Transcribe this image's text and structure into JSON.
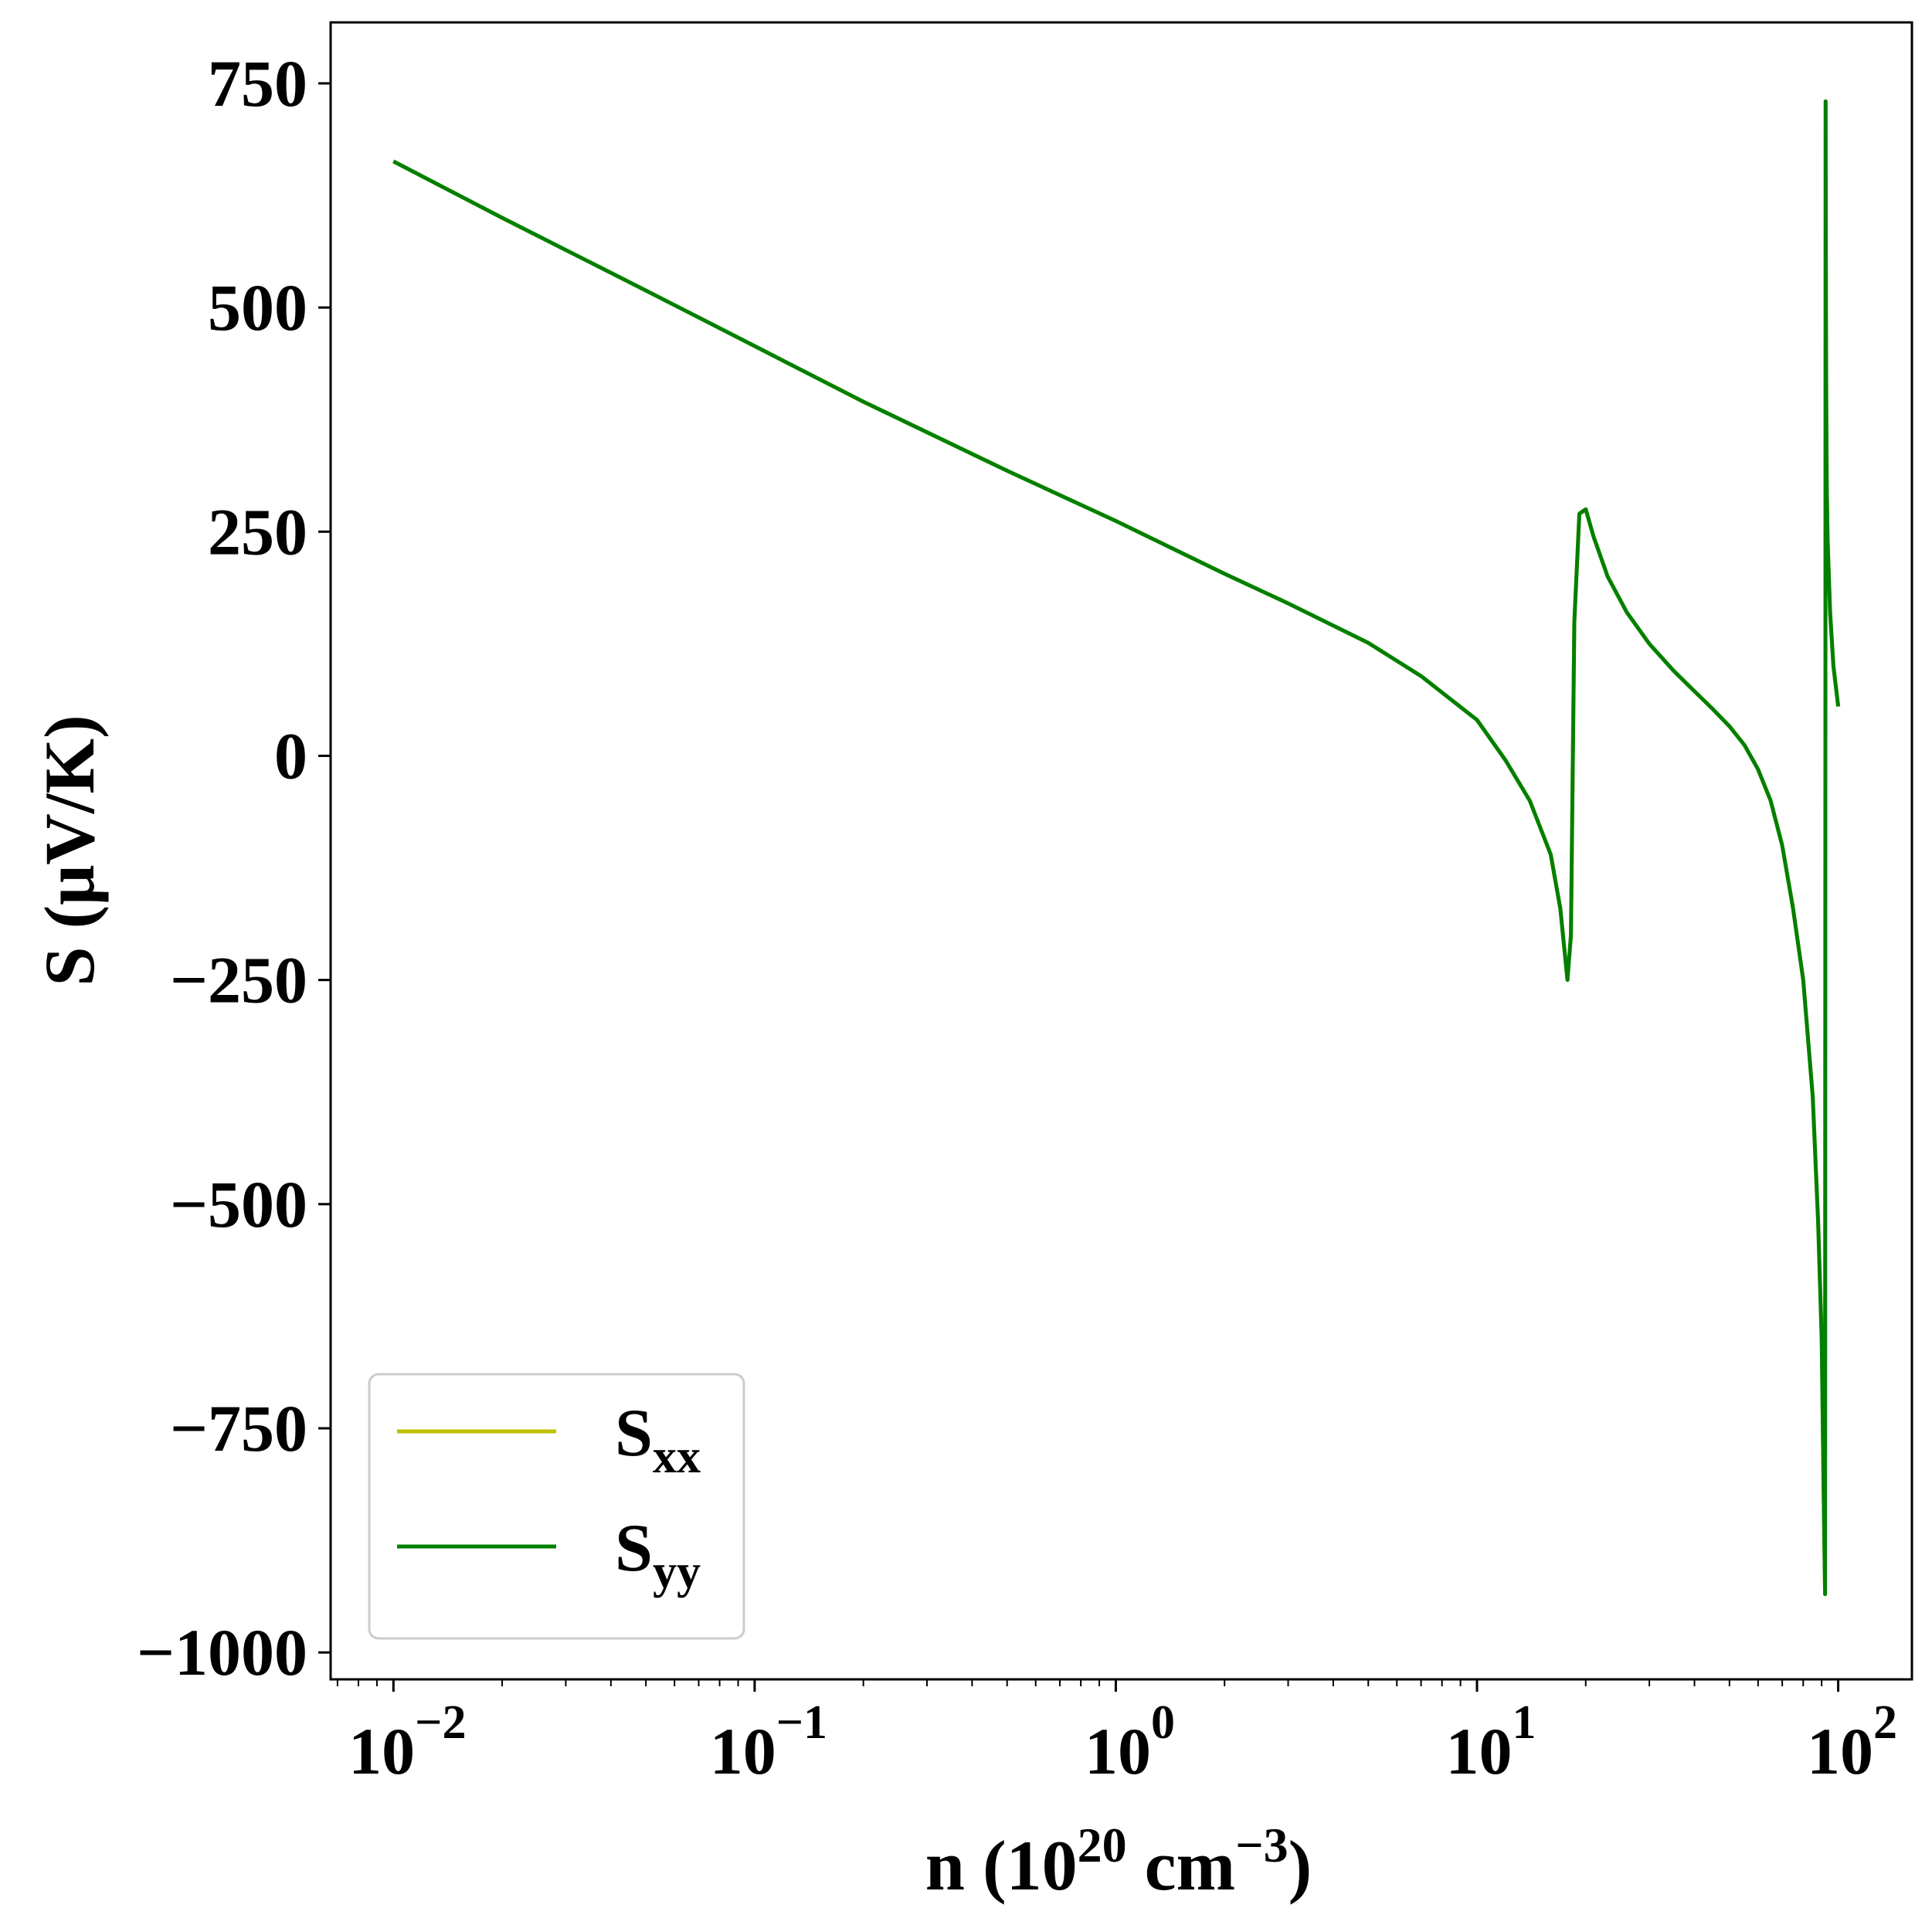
{
  "chart_data": {
    "type": "line",
    "xlabel": {
      "base": "n (10",
      "sup1": "20",
      "mid": " cm",
      "sup2": "−3",
      "end": ")"
    },
    "ylabel": "S (μV/K)",
    "xscale": "log",
    "xlim": [
      0.0067,
      160
    ],
    "ylim": [
      -1030,
      818
    ],
    "x_ticks": [
      {
        "value": 0.01,
        "base": "10",
        "exp": "−2"
      },
      {
        "value": 0.1,
        "base": "10",
        "exp": "−1"
      },
      {
        "value": 1,
        "base": "10",
        "exp": "0"
      },
      {
        "value": 10,
        "base": "10",
        "exp": "1"
      },
      {
        "value": 100,
        "base": "10",
        "exp": "2"
      }
    ],
    "y_ticks": [
      {
        "value": 750,
        "label": "750"
      },
      {
        "value": 500,
        "label": "500"
      },
      {
        "value": 250,
        "label": "250"
      },
      {
        "value": 0,
        "label": "0"
      },
      {
        "value": -250,
        "label": "−250"
      },
      {
        "value": -500,
        "label": "−500"
      },
      {
        "value": -750,
        "label": "−750"
      },
      {
        "value": -1000,
        "label": "−1000"
      }
    ],
    "grid": false,
    "legend_position": "lower-left",
    "series": [
      {
        "name": "S",
        "subscript": "xx",
        "color": "#bfbf00",
        "x": [
          0.01,
          0.02,
          0.05,
          0.1,
          0.2,
          0.5,
          1,
          2,
          3,
          5,
          7,
          10,
          12,
          14,
          16,
          17,
          17.8,
          18.2,
          18.6,
          19.2,
          20,
          21,
          23,
          26,
          30,
          35,
          40,
          45,
          50,
          55,
          60,
          65,
          70,
          75,
          80,
          85,
          88,
          90,
          91,
          92,
          92.3,
          92.5,
          92.7,
          93,
          93.5,
          95,
          97,
          100
        ],
        "y": [
          663,
          600,
          519,
          457,
          395,
          318,
          262,
          203,
          170,
          126,
          89,
          40,
          -5,
          -50,
          -110,
          -170,
          -250,
          -200,
          150,
          270,
          275,
          245,
          200,
          160,
          125,
          95,
          72,
          52,
          33,
          12,
          -15,
          -50,
          -100,
          -170,
          -250,
          -380,
          -520,
          -650,
          -800,
          -935,
          730,
          500,
          380,
          300,
          240,
          160,
          100,
          55
        ]
      },
      {
        "name": "S",
        "subscript": "yy",
        "color": "#008000",
        "x": [
          0.01,
          0.02,
          0.05,
          0.1,
          0.2,
          0.5,
          1,
          2,
          3,
          5,
          7,
          10,
          12,
          14,
          16,
          17,
          17.8,
          18.2,
          18.6,
          19.2,
          20,
          21,
          23,
          26,
          30,
          35,
          40,
          45,
          50,
          55,
          60,
          65,
          70,
          75,
          80,
          85,
          88,
          90,
          91,
          92,
          92.3,
          92.5,
          92.7,
          93,
          93.5,
          95,
          97,
          100
        ],
        "y": [
          663,
          600,
          519,
          457,
          395,
          318,
          262,
          203,
          170,
          126,
          89,
          40,
          -5,
          -50,
          -110,
          -170,
          -250,
          -200,
          150,
          270,
          275,
          245,
          200,
          160,
          125,
          95,
          72,
          52,
          33,
          12,
          -15,
          -50,
          -100,
          -170,
          -250,
          -380,
          -520,
          -650,
          -800,
          -935,
          730,
          500,
          380,
          300,
          240,
          160,
          100,
          55
        ]
      }
    ]
  }
}
